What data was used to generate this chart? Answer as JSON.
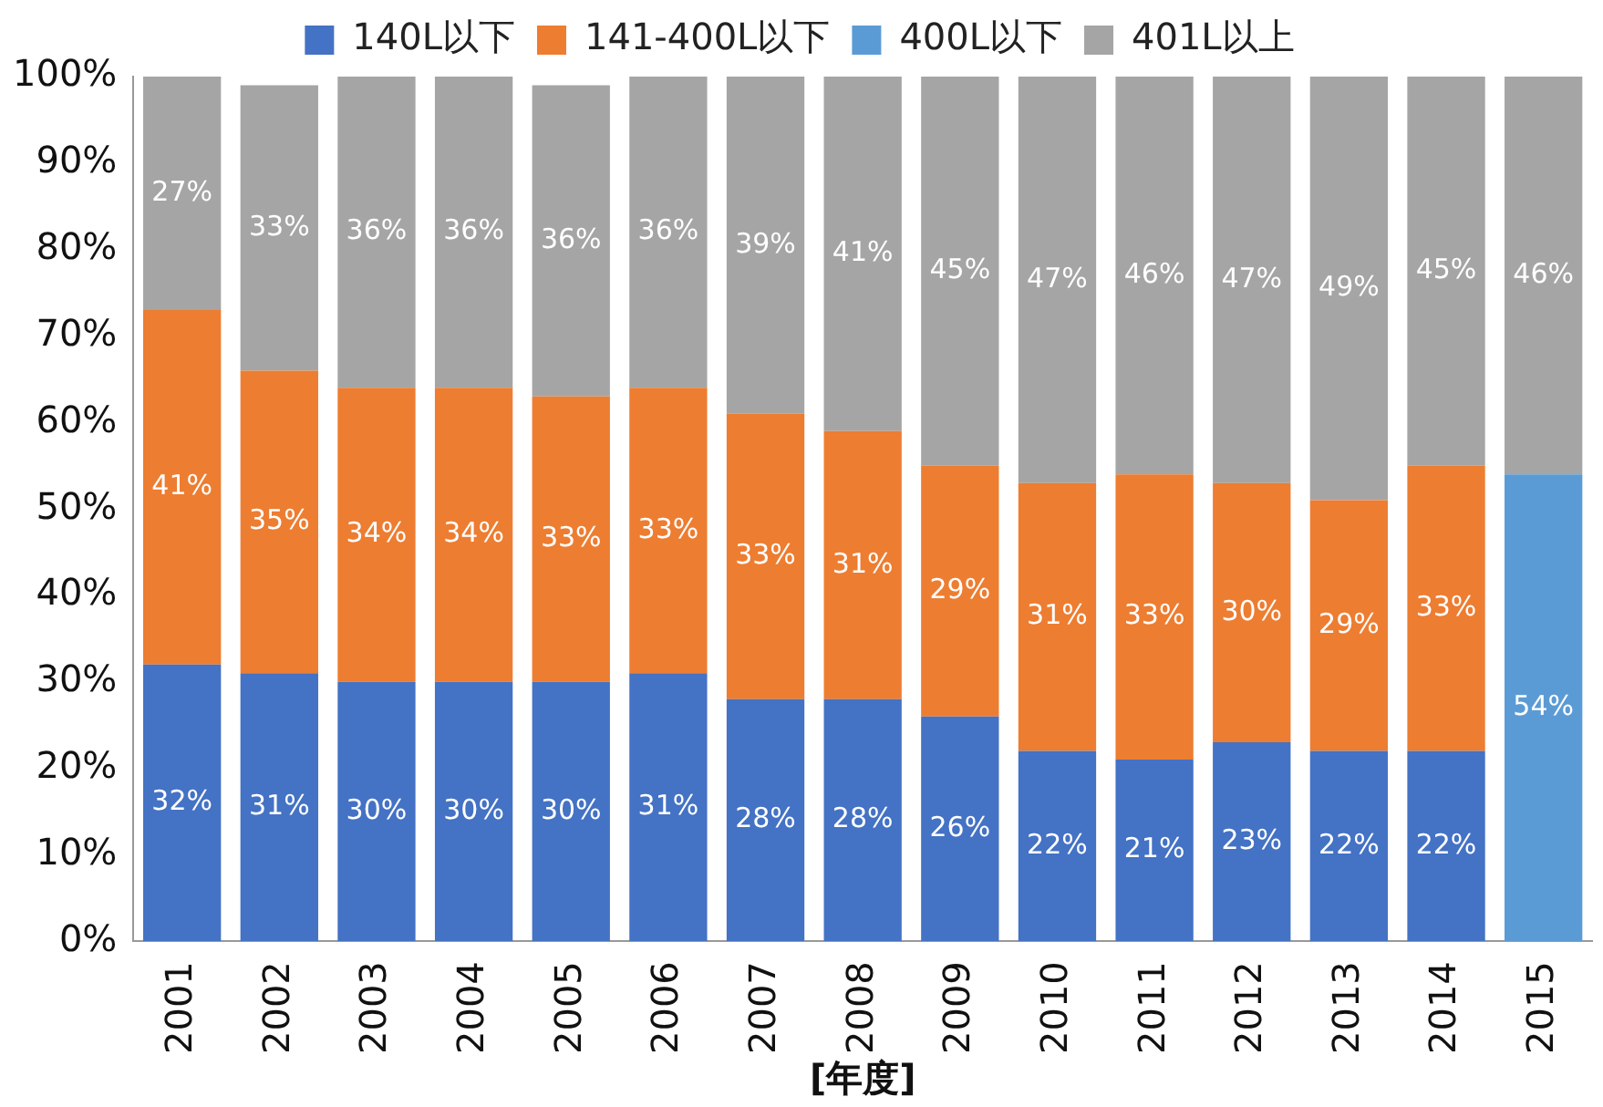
{
  "chart_data": {
    "type": "bar",
    "stacked": true,
    "xlabel": "[年度]",
    "categories": [
      "2001",
      "2002",
      "2003",
      "2004",
      "2005",
      "2006",
      "2007",
      "2008",
      "2009",
      "2010",
      "2011",
      "2012",
      "2013",
      "2014",
      "2015"
    ],
    "ylim": [
      0,
      100
    ],
    "yticks": [
      {
        "value": 0,
        "label": "0%"
      },
      {
        "value": 10,
        "label": "10%"
      },
      {
        "value": 20,
        "label": "20%"
      },
      {
        "value": 30,
        "label": "30%"
      },
      {
        "value": 40,
        "label": "40%"
      },
      {
        "value": 50,
        "label": "50%"
      },
      {
        "value": 60,
        "label": "60%"
      },
      {
        "value": 70,
        "label": "70%"
      },
      {
        "value": 80,
        "label": "80%"
      },
      {
        "value": 90,
        "label": "90%"
      },
      {
        "value": 100,
        "label": "100%"
      }
    ],
    "grid": false,
    "legend": "top",
    "series": [
      {
        "name": "140L以下",
        "color": "#4472c4",
        "values": [
          32,
          31,
          30,
          30,
          30,
          31,
          28,
          28,
          26,
          22,
          21,
          23,
          22,
          22,
          null
        ],
        "value_labels": [
          "32%",
          "31%",
          "30%",
          "30%",
          "30%",
          "31%",
          "28%",
          "28%",
          "26%",
          "22%",
          "21%",
          "23%",
          "22%",
          "22%",
          null
        ]
      },
      {
        "name": "141-400L以下",
        "color": "#ed7d31",
        "values": [
          41,
          35,
          34,
          34,
          33,
          33,
          33,
          31,
          29,
          31,
          33,
          30,
          29,
          33,
          null
        ],
        "value_labels": [
          "41%",
          "35%",
          "34%",
          "34%",
          "33%",
          "33%",
          "33%",
          "31%",
          "29%",
          "31%",
          "33%",
          "30%",
          "29%",
          "33%",
          null
        ]
      },
      {
        "name": "400L以下",
        "color": "#5b9bd5",
        "values": [
          null,
          null,
          null,
          null,
          null,
          null,
          null,
          null,
          null,
          null,
          null,
          null,
          null,
          null,
          54
        ],
        "value_labels": [
          null,
          null,
          null,
          null,
          null,
          null,
          null,
          null,
          null,
          null,
          null,
          null,
          null,
          null,
          "54%"
        ]
      },
      {
        "name": "401L以上",
        "color": "#a5a5a5",
        "values": [
          27,
          33,
          36,
          36,
          36,
          36,
          39,
          41,
          45,
          47,
          46,
          47,
          49,
          45,
          46
        ],
        "value_labels": [
          "27%",
          "33%",
          "36%",
          "36%",
          "36%",
          "36%",
          "39%",
          "41%",
          "45%",
          "47%",
          "46%",
          "47%",
          "49%",
          "45%",
          "46%"
        ]
      }
    ]
  }
}
